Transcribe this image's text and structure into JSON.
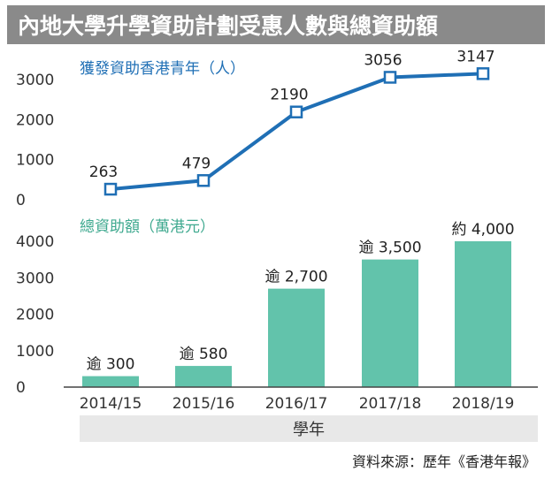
{
  "title": "內地大學升學資助計劃受惠人數與總資助額",
  "source": "資料來源：歷年《香港年報》",
  "colors": {
    "title_bg": "#8a8a8a",
    "line": "#1f6fb5",
    "marker_fill": "#ffffff",
    "bar": "#62c3ab",
    "axis_band": "#e8e8e8",
    "axis_line": "#444444"
  },
  "chart_data": [
    {
      "type": "line",
      "subtitle": "獲發資助香港青年（人）",
      "categories": [
        "2014/15",
        "2015/16",
        "2016/17",
        "2017/18",
        "2018/19"
      ],
      "values": [
        263,
        479,
        2190,
        3056,
        3147
      ],
      "value_labels": [
        "263",
        "479",
        "2190",
        "3056",
        "3147"
      ],
      "yticks": [
        "0",
        "1000",
        "2000",
        "3000"
      ],
      "ylim": [
        0,
        3000
      ]
    },
    {
      "type": "bar",
      "subtitle": "總資助額（萬港元）",
      "categories": [
        "2014/15",
        "2015/16",
        "2016/17",
        "2017/18",
        "2018/19"
      ],
      "values": [
        300,
        580,
        2700,
        3500,
        4000
      ],
      "value_labels": [
        "逾 300",
        "逾 580",
        "逾 2,700",
        "逾 3,500",
        "約 4,000"
      ],
      "yticks": [
        "0",
        "1000",
        "2000",
        "3000",
        "4000"
      ],
      "ylim": [
        0,
        4000
      ],
      "xlabel": "學年"
    }
  ]
}
